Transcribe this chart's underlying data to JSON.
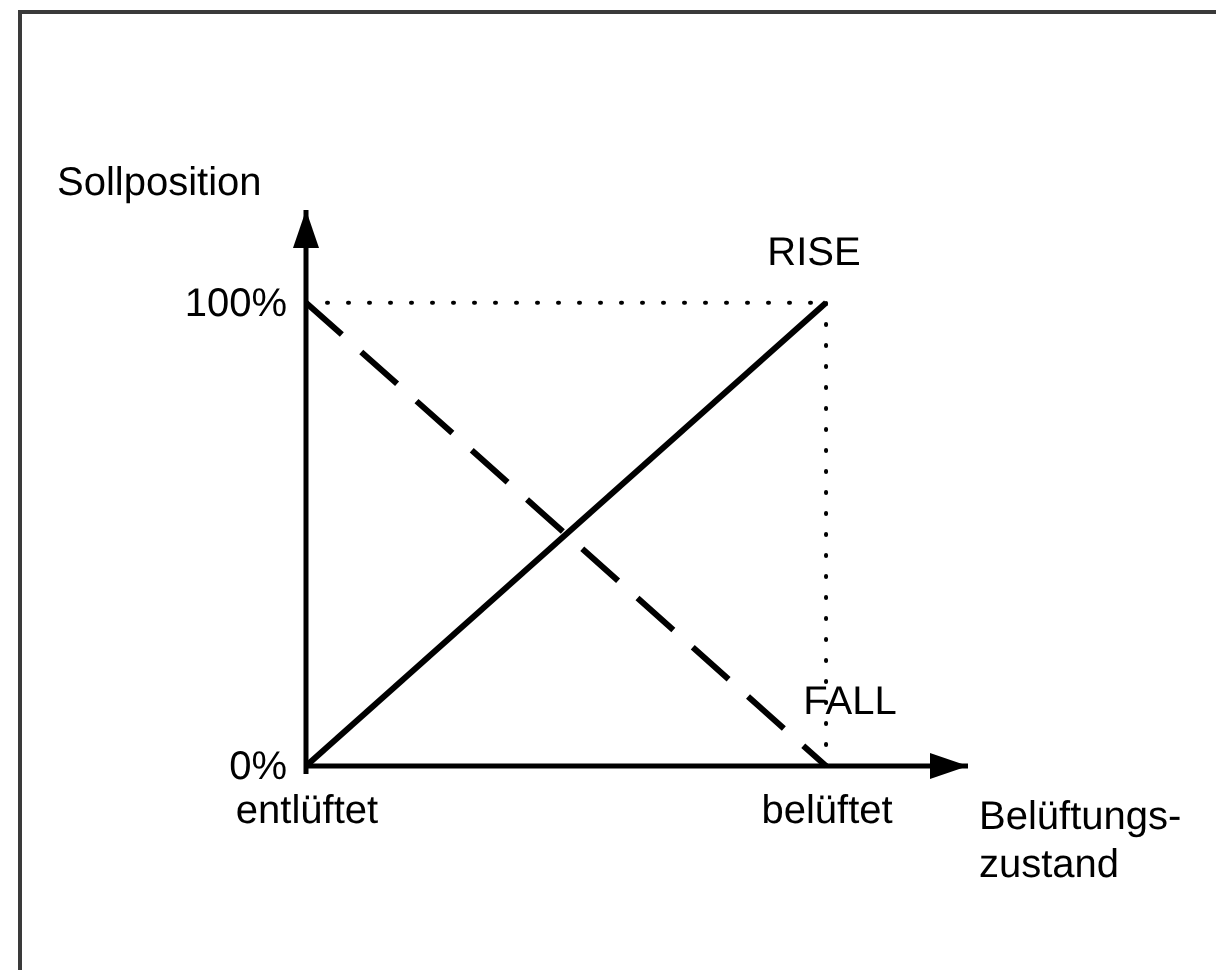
{
  "chart_data": {
    "type": "line",
    "xlabel": "Belüftungs-\nzustand",
    "ylabel": "Sollposition",
    "categories": [
      "entlüftet",
      "belüftet"
    ],
    "series": [
      {
        "name": "RISE",
        "color": "#000000",
        "values": [
          0,
          100
        ],
        "line_style": "solid"
      },
      {
        "name": "FALL",
        "color": "#000000",
        "values": [
          100,
          0
        ],
        "line_style": "dashed"
      }
    ],
    "ylim": [
      0,
      120
    ],
    "yticks": [
      {
        "value": 0,
        "label": "0%"
      },
      {
        "value": 100,
        "label": "100%"
      }
    ],
    "ref_lines": [
      {
        "axis": "y",
        "value": 100,
        "color": "#000000",
        "line_style": "dotted"
      },
      {
        "axis": "x",
        "value": "belüftet",
        "color": "#000000",
        "line_style": "dotted"
      }
    ]
  }
}
